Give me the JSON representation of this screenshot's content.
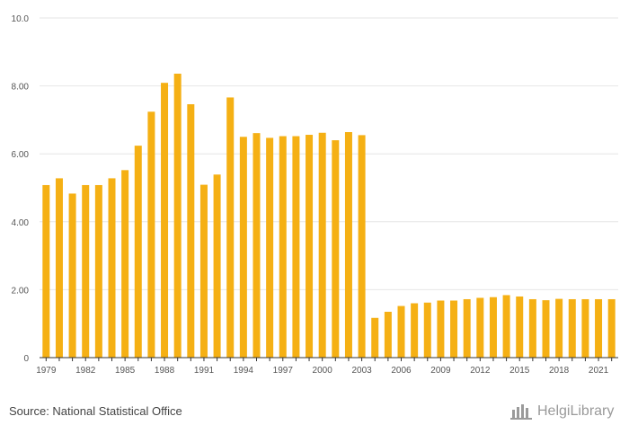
{
  "chart_data": {
    "type": "bar",
    "title": "",
    "xlabel": "",
    "ylabel": "",
    "ylim": [
      0,
      10
    ],
    "y_ticks": [
      "0",
      "2.00",
      "4.00",
      "6.00",
      "8.00",
      "10.0"
    ],
    "y_tick_values": [
      0,
      2,
      4,
      6,
      8,
      10
    ],
    "categories": [
      1979,
      1980,
      1981,
      1982,
      1983,
      1984,
      1985,
      1986,
      1987,
      1988,
      1989,
      1990,
      1991,
      1992,
      1993,
      1994,
      1995,
      1996,
      1997,
      1998,
      1999,
      2000,
      2001,
      2002,
      2003,
      2004,
      2005,
      2006,
      2007,
      2008,
      2009,
      2010,
      2011,
      2012,
      2013,
      2014,
      2015,
      2016,
      2017,
      2018,
      2019,
      2020,
      2021,
      2022
    ],
    "x_tick_labels": [
      "1979",
      "1982",
      "1985",
      "1988",
      "1991",
      "1994",
      "1997",
      "2000",
      "2003",
      "2006",
      "2009",
      "2012",
      "2015",
      "2018",
      "2021"
    ],
    "values": [
      5.08,
      5.28,
      4.83,
      5.08,
      5.08,
      5.28,
      5.52,
      6.24,
      7.24,
      8.09,
      8.36,
      7.46,
      5.09,
      5.39,
      7.66,
      6.5,
      6.61,
      6.47,
      6.52,
      6.52,
      6.56,
      6.62,
      6.4,
      6.64,
      6.55,
      1.17,
      1.35,
      1.52,
      1.6,
      1.62,
      1.68,
      1.68,
      1.72,
      1.76,
      1.78,
      1.84,
      1.8,
      1.72,
      1.69,
      1.73,
      1.72,
      1.72,
      1.72,
      1.72
    ],
    "bar_color": "#F5B014",
    "grid": true
  },
  "footer": {
    "source": "Source: National Statistical Office",
    "brand": "HelgiLibrary"
  }
}
